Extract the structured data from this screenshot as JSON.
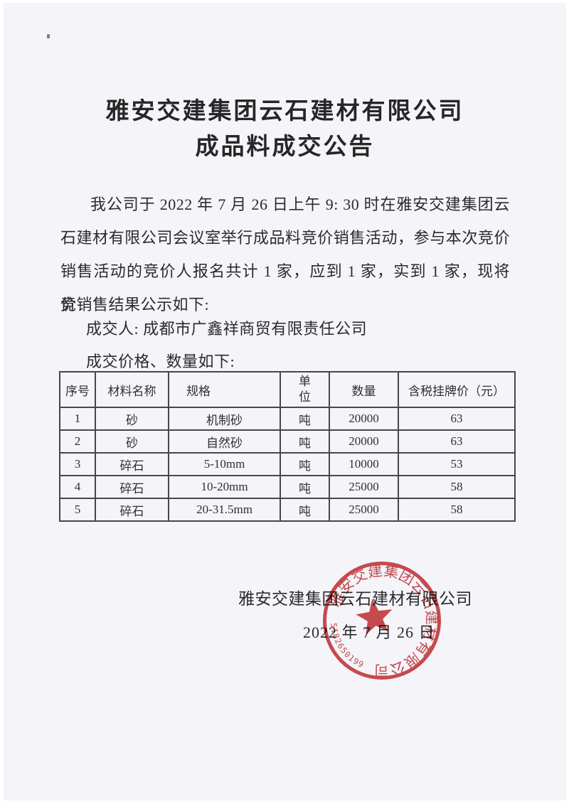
{
  "page": {
    "background": "#f4f4f9",
    "title_line1": "雅安交建集团云石建材有限公司",
    "title_line2": "成品料成交公告"
  },
  "body": {
    "paragraph_lines": [
      "我公司于 2022 年 7 月 26 日上午 9: 30 时在雅安交建集团云",
      "石建材有限公司会议室举行成品料竞价销售活动，参与本次竞价",
      "销售活动的竞价人报名共计 1 家，应到 1 家，实到 1 家，现将竞",
      "价销售结果公示如下:"
    ],
    "winner_line": "成交人: 成都市广鑫祥商贸有限责任公司",
    "price_line": "成交价格、数量如下:"
  },
  "table": {
    "headers": [
      "序号",
      "材料名称",
      "规格",
      "单位",
      "数量",
      "含税挂牌价（元）"
    ],
    "rows": [
      [
        "1",
        "砂",
        "机制砂",
        "吨",
        "20000",
        "63"
      ],
      [
        "2",
        "砂",
        "自然砂",
        "吨",
        "20000",
        "63"
      ],
      [
        "3",
        "碎石",
        "5-10mm",
        "吨",
        "10000",
        "53"
      ],
      [
        "4",
        "碎石",
        "10-20mm",
        "吨",
        "25000",
        "58"
      ],
      [
        "5",
        "碎石",
        "20-31.5mm",
        "吨",
        "25000",
        "58"
      ]
    ]
  },
  "signature": {
    "company": "雅安交建集团云石建材有限公司",
    "date": "2022 年 7 月 26 日"
  },
  "stamp": {
    "ring_text": "雅安交建集团云石建材有限公司",
    "code": "518265019908",
    "color": "#c8393c"
  }
}
